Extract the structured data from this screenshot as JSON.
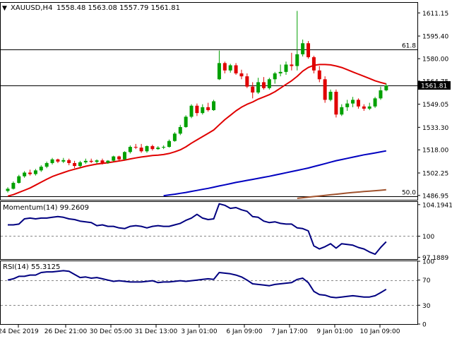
{
  "header": {
    "symbol": "XAUUSD,H4",
    "ohlc": "1558.48 1563.08 1557.79 1561.81"
  },
  "colors": {
    "bull": "#00a000",
    "bear": "#e00000",
    "ma_fast": "#e00000",
    "ma_mid": "#0000c0",
    "ma_slow": "#a0522d",
    "indicator": "#000080",
    "grid": "#000000",
    "price_label_bg": "#000000"
  },
  "chart_data": [
    {
      "type": "candlestick",
      "title": "XAUUSD,H4",
      "ylim": [
        1484,
        1618
      ],
      "y_ticks": [
        "1611.15",
        "1595.40",
        "1580.00",
        "1564.75",
        "1549.05",
        "1533.30",
        "1518.00",
        "1502.25",
        "1486.95"
      ],
      "x_ticks": [
        "24 Dec 2019",
        "26 Dec 21:00",
        "30 Dec 05:00",
        "31 Dec 13:00",
        "3 Jan 01:00",
        "6 Jan 09:00",
        "7 Jan 17:00",
        "9 Jan 01:00",
        "10 Jan 09:00"
      ],
      "levels": [
        {
          "label": "61.8",
          "value": 1586.2
        },
        {
          "label": "",
          "value": 1561.81
        },
        {
          "label": "50.0",
          "value": 1486.2
        }
      ],
      "current_price": "1561.81",
      "candles": [
        [
          1490.0,
          1492.5,
          1489.0,
          1491.5
        ],
        [
          1491.5,
          1496.5,
          1491.0,
          1495.5
        ],
        [
          1495.5,
          1501.0,
          1495.0,
          1500.0
        ],
        [
          1500.0,
          1503.5,
          1499.0,
          1502.5
        ],
        [
          1502.5,
          1504.5,
          1500.5,
          1501.5
        ],
        [
          1501.5,
          1505.0,
          1500.5,
          1504.0
        ],
        [
          1504.0,
          1507.5,
          1503.0,
          1506.5
        ],
        [
          1506.5,
          1510.0,
          1505.5,
          1509.0
        ],
        [
          1509.0,
          1512.5,
          1508.0,
          1511.5
        ],
        [
          1511.5,
          1512.0,
          1509.0,
          1510.0
        ],
        [
          1510.0,
          1512.5,
          1509.0,
          1511.0
        ],
        [
          1511.0,
          1512.0,
          1507.5,
          1509.0
        ],
        [
          1509.0,
          1510.5,
          1505.5,
          1507.0
        ],
        [
          1507.0,
          1510.5,
          1506.0,
          1509.5
        ],
        [
          1509.5,
          1512.0,
          1508.5,
          1510.5
        ],
        [
          1510.5,
          1512.0,
          1509.0,
          1509.8
        ],
        [
          1509.8,
          1511.5,
          1508.5,
          1510.8
        ],
        [
          1510.8,
          1512.0,
          1508.0,
          1509.2
        ],
        [
          1509.2,
          1511.0,
          1508.5,
          1510.6
        ],
        [
          1510.6,
          1514.0,
          1510.0,
          1513.5
        ],
        [
          1513.5,
          1514.0,
          1510.5,
          1511.5
        ],
        [
          1511.5,
          1517.0,
          1511.0,
          1516.5
        ],
        [
          1516.5,
          1521.0,
          1515.5,
          1520.0
        ],
        [
          1520.0,
          1522.0,
          1518.5,
          1519.5
        ],
        [
          1519.5,
          1522.0,
          1516.0,
          1517.0
        ],
        [
          1517.0,
          1521.0,
          1516.0,
          1520.5
        ],
        [
          1520.5,
          1521.5,
          1517.5,
          1518.5
        ],
        [
          1518.5,
          1520.5,
          1518.0,
          1519.5
        ],
        [
          1519.5,
          1521.0,
          1518.5,
          1520.0
        ],
        [
          1520.0,
          1525.0,
          1519.5,
          1524.0
        ],
        [
          1524.0,
          1530.0,
          1523.5,
          1529.0
        ],
        [
          1529.0,
          1535.0,
          1528.0,
          1533.5
        ],
        [
          1533.5,
          1541.5,
          1533.0,
          1540.5
        ],
        [
          1540.5,
          1549.0,
          1539.5,
          1548.0
        ],
        [
          1548.0,
          1549.5,
          1541.0,
          1543.0
        ],
        [
          1543.0,
          1549.0,
          1542.0,
          1547.0
        ],
        [
          1547.0,
          1550.0,
          1544.0,
          1545.0
        ],
        [
          1545.0,
          1552.0,
          1544.5,
          1551.0
        ],
        [
          1566.0,
          1585.5,
          1565.5,
          1577.0
        ],
        [
          1577.0,
          1578.0,
          1570.0,
          1572.0
        ],
        [
          1572.0,
          1576.5,
          1570.5,
          1575.5
        ],
        [
          1575.5,
          1577.0,
          1569.0,
          1570.0
        ],
        [
          1570.0,
          1572.5,
          1566.0,
          1568.0
        ],
        [
          1568.0,
          1570.0,
          1560.0,
          1561.0
        ],
        [
          1561.0,
          1564.0,
          1553.0,
          1557.0
        ],
        [
          1557.0,
          1567.0,
          1556.0,
          1564.0
        ],
        [
          1564.0,
          1567.5,
          1559.0,
          1560.0
        ],
        [
          1560.0,
          1567.0,
          1559.0,
          1566.0
        ],
        [
          1566.0,
          1571.0,
          1563.0,
          1570.0
        ],
        [
          1570.0,
          1576.0,
          1568.0,
          1571.0
        ],
        [
          1571.0,
          1578.0,
          1569.0,
          1576.0
        ],
        [
          1576.0,
          1584.0,
          1572.0,
          1575.0
        ],
        [
          1575.0,
          1612.5,
          1572.0,
          1583.0
        ],
        [
          1583.0,
          1593.0,
          1581.5,
          1590.5
        ],
        [
          1590.5,
          1592.0,
          1580.0,
          1581.0
        ],
        [
          1581.0,
          1582.0,
          1570.0,
          1572.0
        ],
        [
          1572.0,
          1575.0,
          1564.0,
          1566.0
        ],
        [
          1566.0,
          1568.0,
          1550.0,
          1552.0
        ],
        [
          1552.0,
          1559.0,
          1551.0,
          1557.5
        ],
        [
          1557.5,
          1559.0,
          1540.0,
          1542.0
        ],
        [
          1542.0,
          1549.0,
          1541.0,
          1547.0
        ],
        [
          1547.0,
          1552.0,
          1544.5,
          1549.5
        ],
        [
          1549.5,
          1554.0,
          1547.0,
          1552.0
        ],
        [
          1552.0,
          1553.0,
          1546.0,
          1547.5
        ],
        [
          1547.5,
          1549.0,
          1544.5,
          1546.0
        ],
        [
          1546.0,
          1550.0,
          1545.0,
          1547.5
        ],
        [
          1547.5,
          1554.0,
          1546.5,
          1553.0
        ],
        [
          1553.0,
          1561.0,
          1552.0,
          1558.48
        ],
        [
          1558.48,
          1563.08,
          1557.79,
          1561.81
        ]
      ],
      "ma_fast": [
        1486.5,
        1487.5,
        1489.0,
        1490.5,
        1492.0,
        1494.0,
        1496.0,
        1498.0,
        1499.8,
        1501.2,
        1502.5,
        1503.8,
        1504.8,
        1505.8,
        1506.8,
        1507.6,
        1508.3,
        1508.8,
        1509.2,
        1509.8,
        1510.4,
        1511.0,
        1511.8,
        1512.5,
        1513.1,
        1513.6,
        1514.1,
        1514.4,
        1514.8,
        1515.5,
        1516.6,
        1518.0,
        1520.0,
        1522.5,
        1524.8,
        1527.0,
        1529.2,
        1531.5,
        1535.0,
        1538.5,
        1541.5,
        1544.5,
        1547.0,
        1549.0,
        1550.5,
        1552.5,
        1554.0,
        1555.5,
        1557.5,
        1560.0,
        1562.5,
        1565.0,
        1568.0,
        1571.5,
        1574.0,
        1575.5,
        1576.0,
        1576.0,
        1575.8,
        1575.0,
        1574.0,
        1572.5,
        1571.0,
        1569.5,
        1568.0,
        1566.5,
        1565.0,
        1563.8,
        1562.8
      ],
      "ma_mid_start_index": 28,
      "ma_mid": [
        1486.8,
        1487.3,
        1487.8,
        1488.4,
        1489.0,
        1489.7,
        1490.4,
        1491.1,
        1491.8,
        1492.6,
        1493.4,
        1494.2,
        1495.0,
        1495.8,
        1496.5,
        1497.2,
        1497.9,
        1498.6,
        1499.3,
        1500.0,
        1500.8,
        1501.6,
        1502.4,
        1503.2,
        1504.0,
        1504.8,
        1505.6,
        1506.6,
        1507.6,
        1508.6,
        1509.6,
        1510.6,
        1511.4,
        1512.2,
        1513.0,
        1513.8,
        1514.6,
        1515.2,
        1515.9,
        1516.6,
        1517.3
      ],
      "ma_slow_start_index": 52,
      "ma_slow": [
        1485.0,
        1485.4,
        1485.8,
        1486.2,
        1486.6,
        1487.0,
        1487.4,
        1487.8,
        1488.2,
        1488.6,
        1489.0,
        1489.3,
        1489.6,
        1489.9,
        1490.2,
        1490.5,
        1490.8
      ]
    },
    {
      "type": "line",
      "title": "Momentum(14) 99.2609",
      "ylim": [
        96.95,
        104.55
      ],
      "y_ticks": [
        "104.1941",
        "100",
        "97.1889"
      ],
      "reference_levels": [
        100
      ],
      "series": [
        {
          "name": "Momentum(14)",
          "values": [
            101.5,
            101.5,
            101.6,
            102.3,
            102.4,
            102.3,
            102.4,
            102.4,
            102.5,
            102.6,
            102.5,
            102.3,
            102.2,
            102.0,
            101.9,
            101.8,
            101.4,
            101.5,
            101.3,
            101.3,
            101.1,
            101.0,
            101.3,
            101.4,
            101.3,
            101.1,
            101.3,
            101.4,
            101.3,
            101.3,
            101.5,
            101.7,
            102.1,
            102.4,
            102.9,
            102.4,
            102.2,
            102.3,
            104.3,
            104.1,
            103.7,
            103.8,
            103.5,
            103.3,
            102.6,
            102.5,
            102.0,
            101.8,
            101.9,
            101.7,
            101.6,
            101.6,
            101.1,
            101.0,
            100.7,
            98.7,
            98.3,
            98.6,
            99.0,
            98.4,
            99.0,
            98.9,
            98.8,
            98.5,
            98.3,
            97.9,
            97.6,
            98.5,
            99.26
          ]
        }
      ]
    },
    {
      "type": "line",
      "title": "RSI(14) 55.3125",
      "ylim": [
        0,
        100
      ],
      "y_ticks": [
        "100",
        "70",
        "30",
        "0"
      ],
      "reference_levels": [
        70,
        30
      ],
      "series": [
        {
          "name": "RSI(14)",
          "values": [
            70,
            72,
            76,
            76,
            78,
            78,
            82,
            83,
            83,
            84,
            85,
            84,
            79,
            74,
            75,
            73,
            74,
            72,
            70,
            68,
            69,
            68,
            67,
            67,
            67,
            68,
            69,
            66,
            67,
            67,
            68,
            69,
            68,
            69,
            70,
            71,
            72,
            71,
            82,
            81,
            80,
            78,
            75,
            70,
            64,
            63,
            62,
            61,
            63,
            64,
            65,
            66,
            71,
            73,
            66,
            52,
            47,
            46,
            43,
            42,
            43,
            44,
            45,
            44,
            43,
            43,
            45,
            50,
            55.31
          ]
        }
      ]
    }
  ]
}
